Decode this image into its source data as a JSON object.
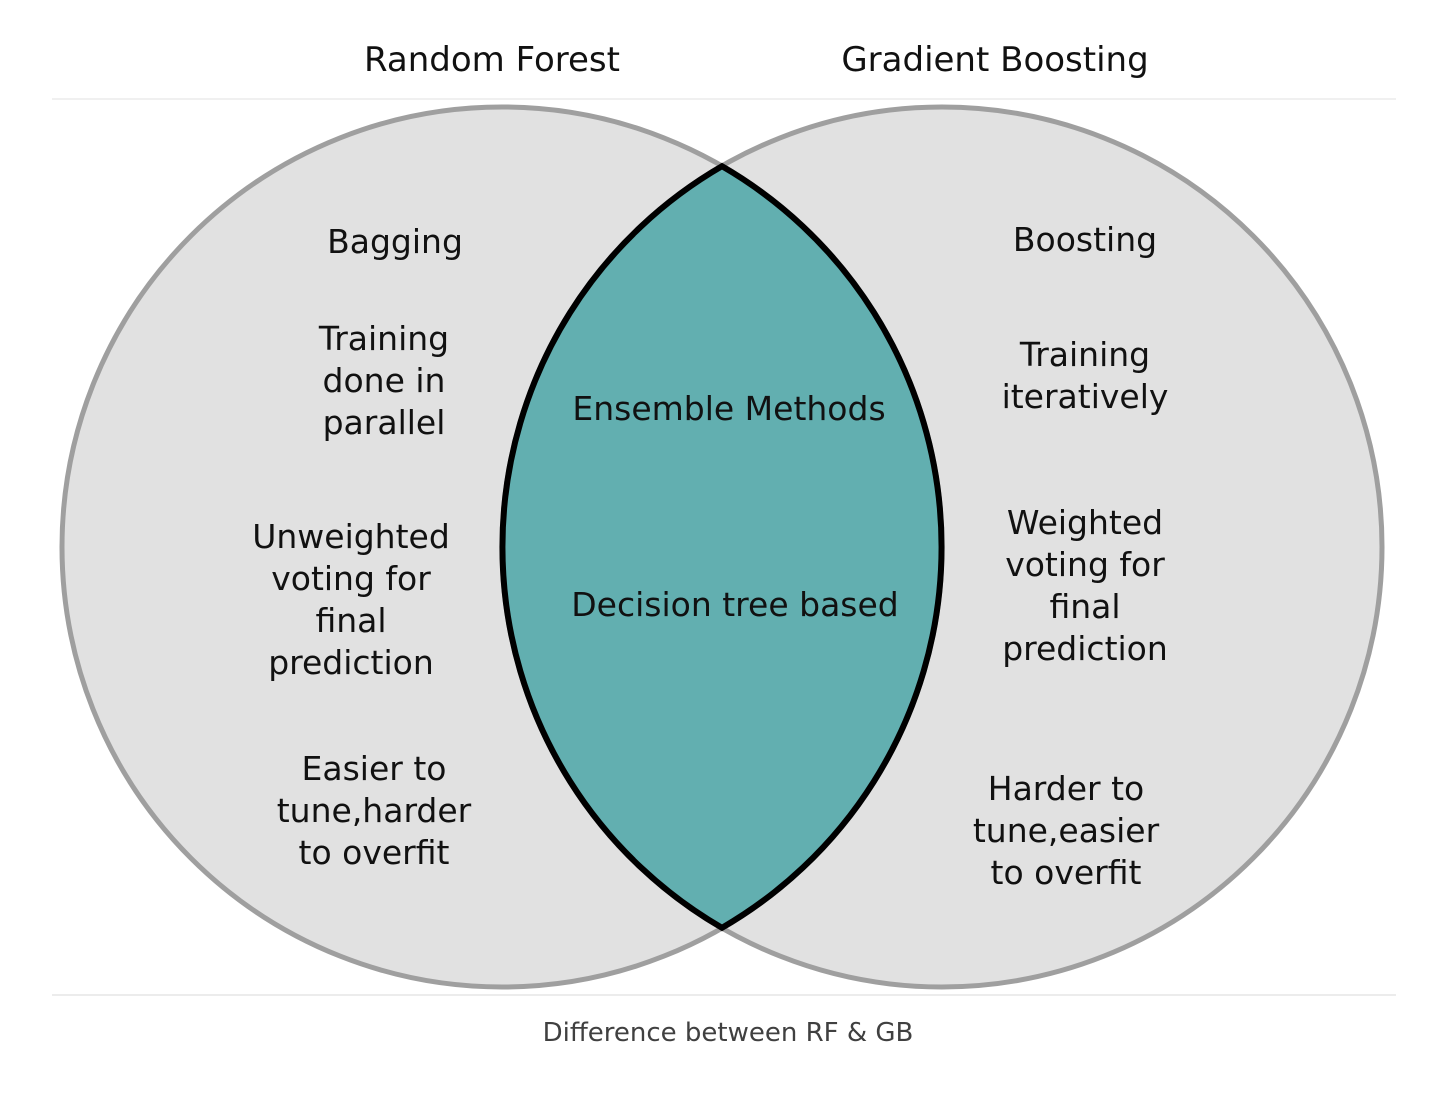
{
  "sets": {
    "left": {
      "title": "Random Forest",
      "items": [
        "Bagging",
        "Training\ndone in\nparallel",
        "Unweighted\nvoting for\nfinal\nprediction",
        "Easier to\ntune,harder\nto overfit"
      ]
    },
    "right": {
      "title": "Gradient Boosting",
      "items": [
        "Boosting",
        "Training\niteratively",
        "Weighted\nvoting for\nfinal\nprediction",
        "Harder to\ntune,easier\nto overfit"
      ]
    },
    "shared": {
      "items": [
        "Ensemble Methods",
        "Decision tree based"
      ]
    }
  },
  "caption": "Difference between RF & GB",
  "colors": {
    "circle_fill": "#e1e1e1",
    "circle_stroke": "#9f9f9f",
    "overlap_fill": "#62afb0",
    "overlap_stroke": "#000000"
  }
}
